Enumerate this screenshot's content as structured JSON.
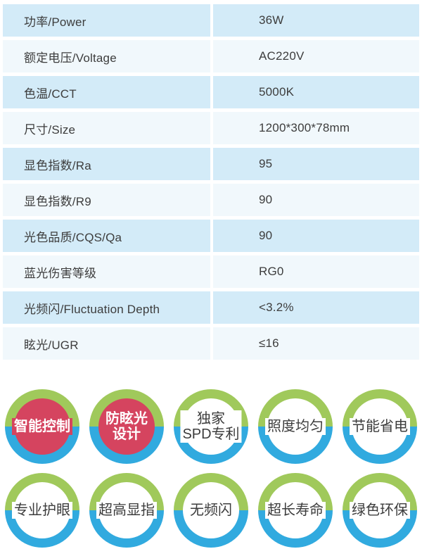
{
  "table": {
    "rows": [
      {
        "label": "功率/Power",
        "value": "36W"
      },
      {
        "label": "额定电压/Voltage",
        "value": "AC220V"
      },
      {
        "label": "色温/CCT",
        "value": "5000K"
      },
      {
        "label": "尺寸/Size",
        "value": "1200*300*78mm"
      },
      {
        "label": "显色指数/Ra",
        "value": "95"
      },
      {
        "label": "显色指数/R9",
        "value": "90"
      },
      {
        "label": "光色品质/CQS/Qa",
        "value": "90"
      },
      {
        "label": "蓝光伤害等级",
        "value": "RG0"
      },
      {
        "label": "光频闪/Fluctuation Depth",
        "value": "<3.2%"
      },
      {
        "label": "眩光/UGR",
        "value": "≤16"
      }
    ]
  },
  "badges": {
    "rows": [
      [
        {
          "label": "智能控制",
          "style": "red"
        },
        {
          "label": "防眩光\n设计",
          "style": "red"
        },
        {
          "label": "独家\nSPD专利",
          "style": "white"
        },
        {
          "label": "照度均匀",
          "style": "white"
        },
        {
          "label": "节能省电",
          "style": "white"
        }
      ],
      [
        {
          "label": "专业护眼",
          "style": "white"
        },
        {
          "label": "超高显指",
          "style": "white"
        },
        {
          "label": "无频闪",
          "style": "white"
        },
        {
          "label": "超长寿命",
          "style": "white"
        },
        {
          "label": "绿色环保",
          "style": "white"
        }
      ]
    ]
  },
  "colors": {
    "row_blue": "#d3ebf8",
    "row_pale": "#f1f8fc",
    "ring_green": "#a0c95b",
    "ring_blue": "#31aadf",
    "badge_red": "#d5445f",
    "text_dark": "#3d3d3d"
  }
}
